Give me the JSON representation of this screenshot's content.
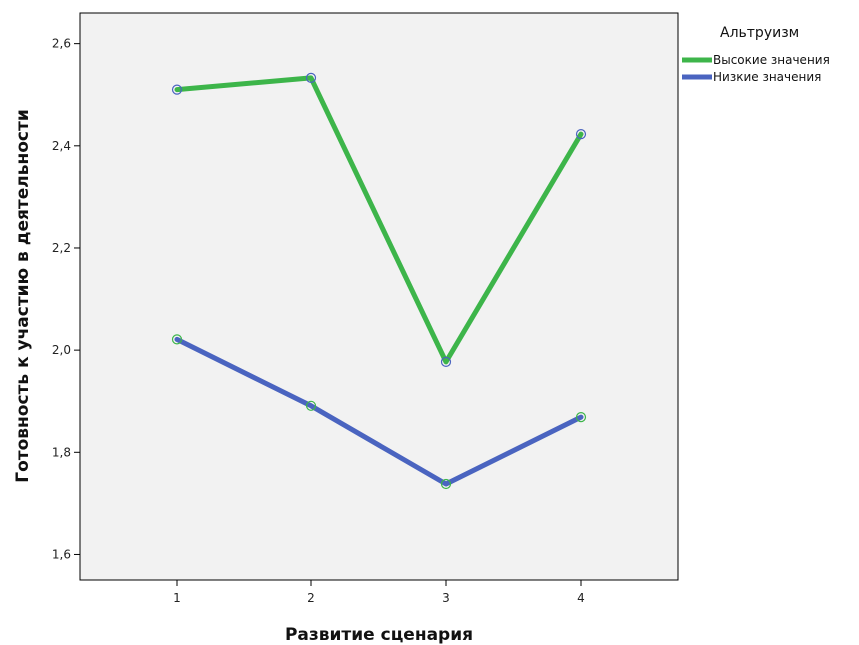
{
  "chart_data": {
    "type": "line",
    "title": "",
    "xlabel": "Развитие сценария",
    "ylabel": "Готовность к участию в деятельности",
    "x": [
      1,
      2,
      3,
      4
    ],
    "x_tick_labels": [
      "1",
      "2",
      "3",
      "4"
    ],
    "y_ticks": [
      1.6,
      1.8,
      2.0,
      2.2,
      2.4,
      2.6
    ],
    "y_tick_labels": [
      "1,6",
      "1,8",
      "2,0",
      "2,2",
      "2,4",
      "2,6"
    ],
    "ylim": [
      1.55,
      2.66
    ],
    "grid": false,
    "legend": {
      "title": "Альтруизм",
      "position": "top-right"
    },
    "series": [
      {
        "name": "Высокие значения",
        "color": "#3db54a",
        "marker_color": "#4a64c0",
        "values": [
          2.51,
          2.533,
          1.977,
          2.423
        ]
      },
      {
        "name": "Низкие значения",
        "color": "#4a64c0",
        "marker_color": "#3db54a",
        "values": [
          2.021,
          1.891,
          1.738,
          1.869
        ]
      }
    ],
    "plot_background": "#f2f2f2"
  }
}
